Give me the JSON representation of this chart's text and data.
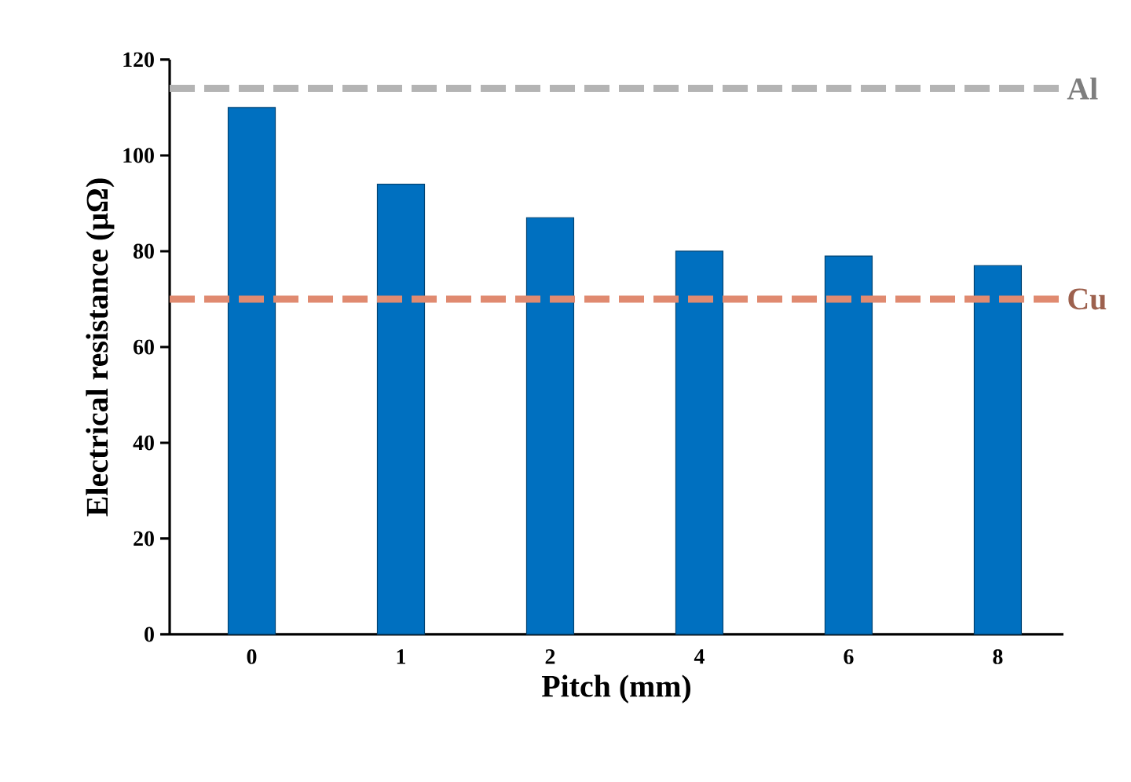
{
  "chart_data": {
    "type": "bar",
    "xlabel": "Pitch (mm)",
    "ylabel": "Electrical resistance (μΩ)",
    "categories": [
      "0",
      "1",
      "2",
      "4",
      "6",
      "8"
    ],
    "values": [
      110,
      94,
      87,
      80,
      79,
      77
    ],
    "color": "#0070c0",
    "ylim": [
      0,
      120
    ],
    "yticks": [
      0,
      20,
      40,
      60,
      80,
      100,
      120
    ],
    "grid": false,
    "ref_lines": [
      {
        "axis": "y",
        "value": 114,
        "label": "Al",
        "color": "#b4b4b4",
        "line_style": "dashed"
      },
      {
        "axis": "y",
        "value": 70,
        "label": "Cu",
        "color": "#e08a70",
        "line_style": "dashed"
      }
    ]
  }
}
